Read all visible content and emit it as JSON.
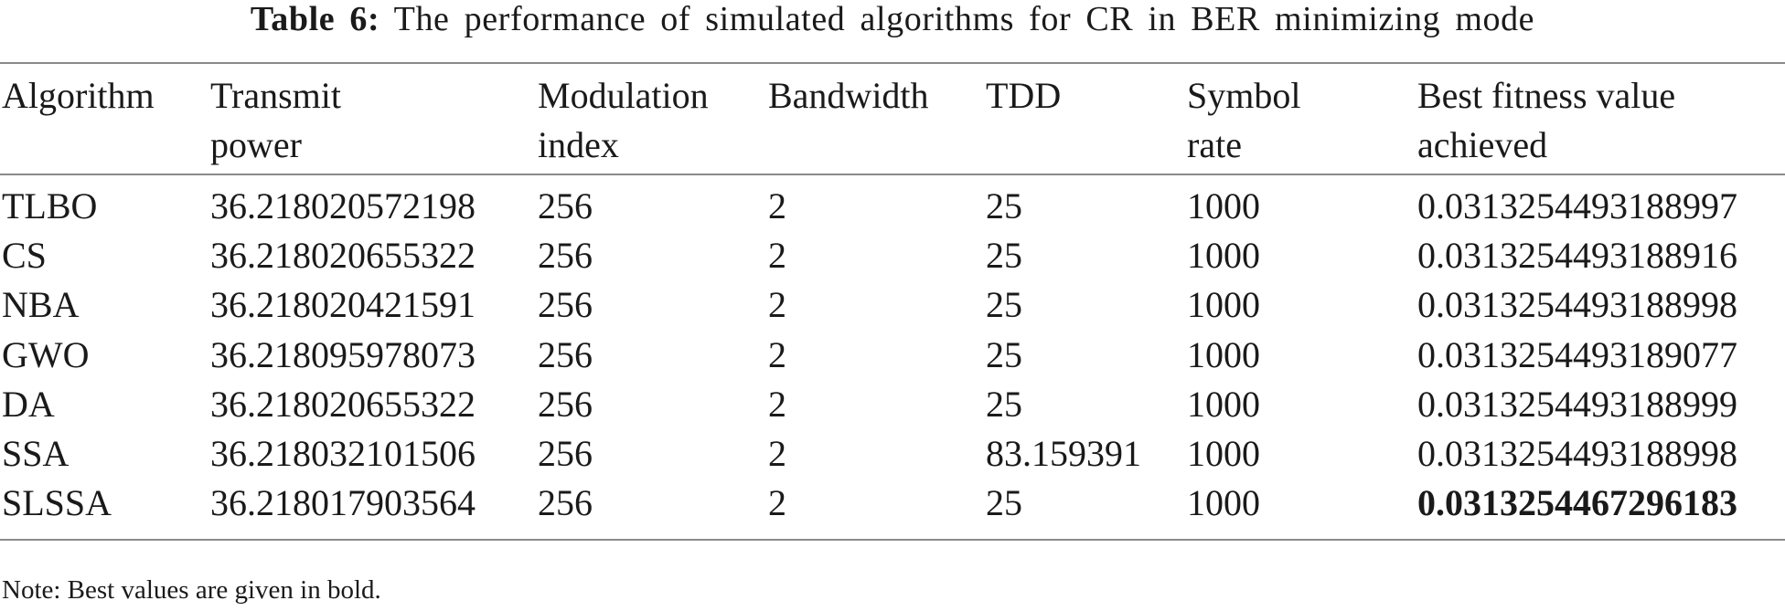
{
  "caption": {
    "label": "Table 6:",
    "text": "The performance of simulated algorithms for CR in BER minimizing mode"
  },
  "table": {
    "headers": [
      [
        "Algorithm"
      ],
      [
        "Transmit",
        "power"
      ],
      [
        "Modulation",
        "index"
      ],
      [
        "Bandwidth"
      ],
      [
        "TDD"
      ],
      [
        "Symbol",
        "rate"
      ],
      [
        "Best fitness value",
        "achieved"
      ]
    ],
    "rows": [
      [
        "TLBO",
        "36.218020572198",
        "256",
        "2",
        "25",
        "1000",
        "0.0313254493188997"
      ],
      [
        "CS",
        "36.218020655322",
        "256",
        "2",
        "25",
        "1000",
        "0.0313254493188916"
      ],
      [
        "NBA",
        "36.218020421591",
        "256",
        "2",
        "25",
        "1000",
        "0.0313254493188998"
      ],
      [
        "GWO",
        "36.218095978073",
        "256",
        "2",
        "25",
        "1000",
        "0.0313254493189077"
      ],
      [
        "DA",
        "36.218020655322",
        "256",
        "2",
        "25",
        "1000",
        "0.0313254493188999"
      ],
      [
        "SSA",
        "36.218032101506",
        "256",
        "2",
        "83.159391",
        "1000",
        "0.0313254493188998"
      ],
      [
        "SLSSA",
        "36.218017903564",
        "256",
        "2",
        "25",
        "1000",
        "0.0313254467296183"
      ]
    ],
    "bold_cells": [
      [
        6,
        6
      ]
    ]
  },
  "note": "Note: Best values are given in bold."
}
